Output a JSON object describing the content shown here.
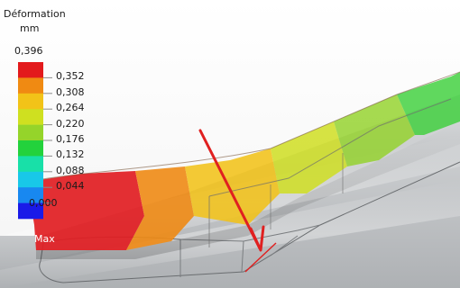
{
  "legend": {
    "title": "Déformation",
    "unit": "mm",
    "max_value": "0,396",
    "ticks": [
      "0,352",
      "0,308",
      "0,264",
      "0,220",
      "0,176",
      "0,132",
      "0,088",
      "0,044",
      "0,000"
    ],
    "colors": [
      "#e31a1c",
      "#f08a12",
      "#f2c318",
      "#cfe020",
      "#95d42a",
      "#23d23c",
      "#18e0a8",
      "#18c8e8",
      "#1888f0",
      "#1a1ae8"
    ]
  },
  "annotation": {
    "max_marker": "Max",
    "arrow_color": "#e02020"
  }
}
